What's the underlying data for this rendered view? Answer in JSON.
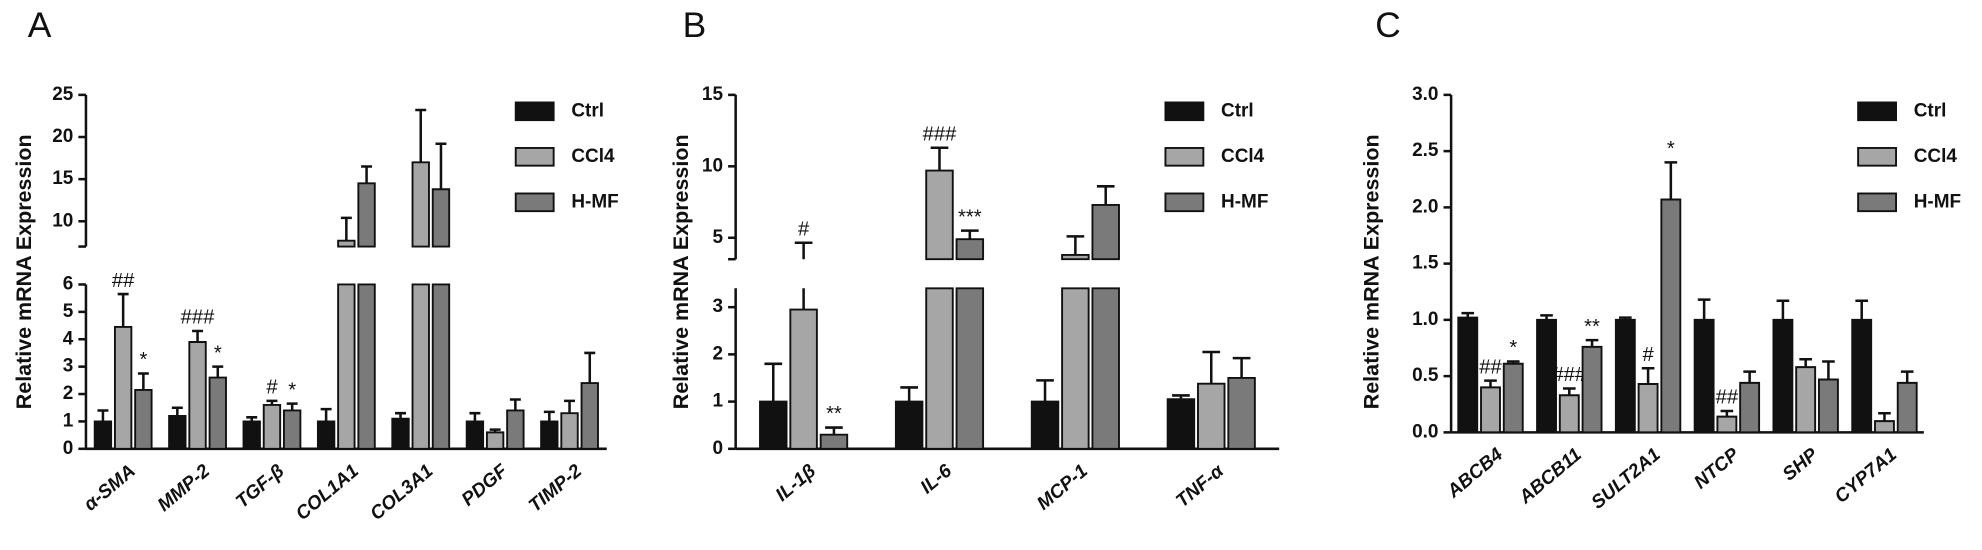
{
  "chart_data": [
    {
      "type": "bar",
      "panel_label": "A",
      "y_label": "Relative mRNA Expression",
      "legend": "upper right",
      "categories": [
        "α-SMA",
        "MMP-2",
        "TGF-β",
        "COL1A1",
        "COL3A1",
        "PDGF",
        "TIMP-2"
      ],
      "y_segments": [
        {
          "ylim": [
            0,
            6
          ],
          "yticks": [
            0,
            1,
            2,
            3,
            4,
            5,
            6
          ]
        },
        {
          "ylim": [
            7,
            25
          ],
          "yticks": [
            10,
            15,
            20,
            25
          ]
        }
      ],
      "series": [
        {
          "name": "Ctrl",
          "color": "#111111",
          "values": [
            1.0,
            1.2,
            1.0,
            1.0,
            1.1,
            1.0,
            1.0
          ],
          "errors": [
            0.4,
            0.3,
            0.15,
            0.45,
            0.2,
            0.3,
            0.35
          ],
          "annotations": [
            null,
            null,
            null,
            null,
            null,
            null,
            null
          ]
        },
        {
          "name": "CCl4",
          "color": "#a6a6a6",
          "values": [
            4.45,
            3.9,
            1.6,
            7.7,
            17.0,
            0.6,
            1.3
          ],
          "errors": [
            1.2,
            0.4,
            0.15,
            2.7,
            6.2,
            0.1,
            0.45
          ],
          "annotations": [
            "##",
            "###",
            "#",
            null,
            null,
            null,
            null
          ]
        },
        {
          "name": "H-MF",
          "color": "#7a7a7a",
          "values": [
            2.15,
            2.6,
            1.4,
            14.5,
            13.8,
            1.4,
            2.4
          ],
          "errors": [
            0.6,
            0.4,
            0.25,
            2.0,
            5.4,
            0.4,
            1.1
          ],
          "annotations": [
            "*",
            "*",
            "*",
            null,
            null,
            null,
            null
          ]
        }
      ]
    },
    {
      "type": "bar",
      "panel_label": "B",
      "y_label": "Relative mRNA Expression",
      "legend": "upper right",
      "categories": [
        "IL-1β",
        "IL-6",
        "MCP-1",
        "TNF-α"
      ],
      "y_segments": [
        {
          "ylim": [
            0,
            3.4
          ],
          "yticks": [
            0,
            1,
            2,
            3
          ]
        },
        {
          "ylim": [
            3.5,
            15
          ],
          "yticks": [
            5,
            10,
            15
          ]
        }
      ],
      "series": [
        {
          "name": "Ctrl",
          "color": "#111111",
          "values": [
            1.0,
            1.0,
            1.0,
            1.05
          ],
          "errors": [
            0.8,
            0.3,
            0.45,
            0.08
          ],
          "annotations": [
            null,
            null,
            null,
            null
          ]
        },
        {
          "name": "CCl4",
          "color": "#a6a6a6",
          "values": [
            2.95,
            9.7,
            3.8,
            1.38
          ],
          "errors": [
            1.7,
            1.6,
            1.3,
            0.67
          ],
          "annotations": [
            "#",
            "###",
            null,
            null
          ]
        },
        {
          "name": "H-MF",
          "color": "#7a7a7a",
          "values": [
            0.3,
            4.9,
            7.3,
            1.5
          ],
          "errors": [
            0.15,
            0.6,
            1.3,
            0.42
          ],
          "annotations": [
            "**",
            "***",
            null,
            null
          ]
        }
      ]
    },
    {
      "type": "bar",
      "panel_label": "C",
      "y_label": "Relative mRNA Expression",
      "legend": "upper right",
      "categories": [
        "ABCB4",
        "ABCB11",
        "SULT2A1",
        "NTCP",
        "SHP",
        "CYP7A1"
      ],
      "ylim": [
        0,
        3
      ],
      "yticks": [
        {
          "value": 0,
          "label": "0.0"
        },
        0.5,
        {
          "value": 1,
          "label": "1.0"
        },
        1.5,
        {
          "value": 2,
          "label": "2.0"
        },
        2.5,
        {
          "value": 3,
          "label": "3.0"
        }
      ],
      "series": [
        {
          "name": "Ctrl",
          "color": "#111111",
          "values": [
            1.02,
            1.0,
            1.0,
            1.0,
            1.0,
            1.0
          ],
          "errors": [
            0.04,
            0.04,
            0.02,
            0.18,
            0.17,
            0.17
          ],
          "annotations": [
            null,
            null,
            null,
            null,
            null,
            null
          ]
        },
        {
          "name": "CCl4",
          "color": "#a6a6a6",
          "values": [
            0.4,
            0.33,
            0.43,
            0.14,
            0.58,
            0.1
          ],
          "errors": [
            0.06,
            0.06,
            0.14,
            0.05,
            0.07,
            0.07
          ],
          "annotations": [
            "##",
            "###",
            "#",
            "##",
            null,
            null
          ]
        },
        {
          "name": "H-MF",
          "color": "#7a7a7a",
          "values": [
            0.61,
            0.76,
            2.07,
            0.44,
            0.47,
            0.44
          ],
          "errors": [
            0.02,
            0.06,
            0.33,
            0.1,
            0.16,
            0.1
          ],
          "annotations": [
            "*",
            "**",
            "*",
            null,
            null,
            null
          ]
        }
      ]
    }
  ]
}
